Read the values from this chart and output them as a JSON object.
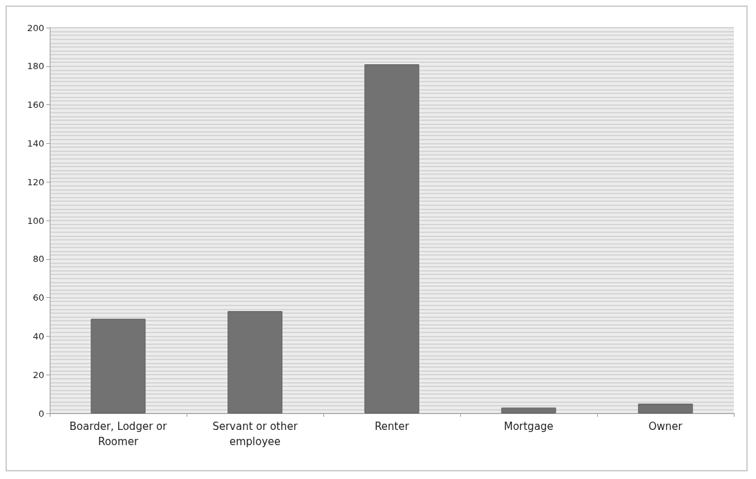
{
  "chart_data": {
    "type": "bar",
    "categories": [
      "Boarder, Lodger or\nRoomer",
      "Servant or other\nemployee",
      "Renter",
      "Mortgage",
      "Owner"
    ],
    "values": [
      49,
      53,
      181,
      3,
      5
    ],
    "color": "#727272",
    "ylim": [
      0,
      200
    ],
    "yticks": [
      0,
      20,
      40,
      60,
      80,
      100,
      120,
      140,
      160,
      180,
      200
    ],
    "grid": "y"
  }
}
